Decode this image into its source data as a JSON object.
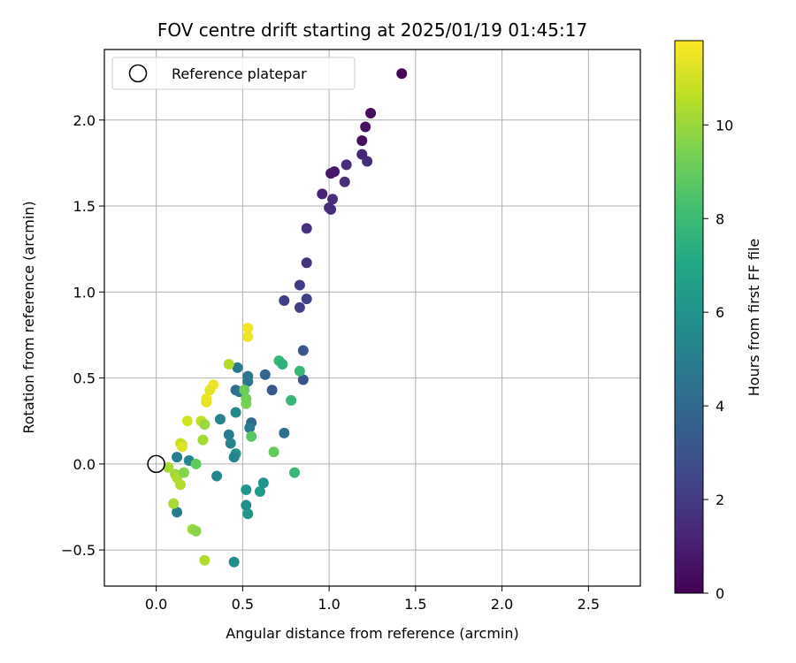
{
  "chart_data": {
    "type": "scatter",
    "title": "FOV centre drift starting at 2025/01/19 01:45:17",
    "xlabel": "Angular distance from reference (arcmin)",
    "ylabel": "Rotation from reference (arcmin)",
    "xlim": [
      -0.3,
      2.8
    ],
    "ylim": [
      -0.71,
      2.41
    ],
    "xticks": [
      0.0,
      0.5,
      1.0,
      1.5,
      2.0,
      2.5
    ],
    "xtick_labels": [
      "0.0",
      "0.5",
      "1.0",
      "1.5",
      "2.0",
      "2.5"
    ],
    "yticks": [
      -0.5,
      0.0,
      0.5,
      1.0,
      1.5,
      2.0
    ],
    "ytick_labels": [
      "−0.5",
      "0.0",
      "0.5",
      "1.0",
      "1.5",
      "2.0"
    ],
    "grid": true,
    "legend": {
      "placement": "top-left",
      "entries": [
        "Reference platepar"
      ]
    },
    "reference_point": {
      "x": 0.0,
      "y": 0.0
    },
    "colorbar": {
      "label": "Hours from first FF file",
      "colormap": "viridis",
      "range": [
        0,
        11.8
      ],
      "ticks": [
        0,
        2,
        4,
        6,
        8,
        10
      ],
      "tick_labels": [
        "0",
        "2",
        "4",
        "6",
        "8",
        "10"
      ]
    },
    "points": [
      {
        "x": 1.42,
        "y": 2.27,
        "h": 0.2
      },
      {
        "x": 1.24,
        "y": 2.04,
        "h": 0.4
      },
      {
        "x": 1.21,
        "y": 1.96,
        "h": 0.6
      },
      {
        "x": 1.19,
        "y": 1.88,
        "h": 0.5
      },
      {
        "x": 1.19,
        "y": 1.8,
        "h": 1.3
      },
      {
        "x": 1.22,
        "y": 1.76,
        "h": 1.5
      },
      {
        "x": 1.1,
        "y": 1.74,
        "h": 1.5
      },
      {
        "x": 1.03,
        "y": 1.7,
        "h": 0.7
      },
      {
        "x": 1.01,
        "y": 1.69,
        "h": 0.8
      },
      {
        "x": 1.09,
        "y": 1.64,
        "h": 1.6
      },
      {
        "x": 0.96,
        "y": 1.57,
        "h": 1.1
      },
      {
        "x": 1.02,
        "y": 1.54,
        "h": 1.6
      },
      {
        "x": 1.0,
        "y": 1.49,
        "h": 1.4
      },
      {
        "x": 1.01,
        "y": 1.48,
        "h": 1.5
      },
      {
        "x": 0.87,
        "y": 1.37,
        "h": 1.6
      },
      {
        "x": 0.87,
        "y": 1.17,
        "h": 1.7
      },
      {
        "x": 0.83,
        "y": 1.04,
        "h": 2.1
      },
      {
        "x": 0.74,
        "y": 0.95,
        "h": 2.2
      },
      {
        "x": 0.87,
        "y": 0.96,
        "h": 2.3
      },
      {
        "x": 0.83,
        "y": 0.91,
        "h": 2.2
      },
      {
        "x": 0.85,
        "y": 0.66,
        "h": 3.2
      },
      {
        "x": 0.85,
        "y": 0.49,
        "h": 3.0
      },
      {
        "x": 0.63,
        "y": 0.52,
        "h": 3.8
      },
      {
        "x": 0.67,
        "y": 0.43,
        "h": 3.2
      },
      {
        "x": 0.74,
        "y": 0.18,
        "h": 4.3
      },
      {
        "x": 0.55,
        "y": 0.24,
        "h": 4.1
      },
      {
        "x": 0.54,
        "y": 0.21,
        "h": 4.8
      },
      {
        "x": 0.53,
        "y": 0.51,
        "h": 4.5
      },
      {
        "x": 0.53,
        "y": 0.48,
        "h": 4.6
      },
      {
        "x": 0.47,
        "y": 0.56,
        "h": 4.8
      },
      {
        "x": 0.46,
        "y": 0.43,
        "h": 4.2
      },
      {
        "x": 0.48,
        "y": 0.42,
        "h": 4.5
      },
      {
        "x": 0.37,
        "y": 0.26,
        "h": 5.3
      },
      {
        "x": 0.46,
        "y": 0.3,
        "h": 5.5
      },
      {
        "x": 0.42,
        "y": 0.17,
        "h": 5.0
      },
      {
        "x": 0.43,
        "y": 0.12,
        "h": 5.3
      },
      {
        "x": 0.46,
        "y": 0.06,
        "h": 6.0
      },
      {
        "x": 0.45,
        "y": 0.04,
        "h": 5.2
      },
      {
        "x": 0.35,
        "y": -0.07,
        "h": 5.4
      },
      {
        "x": 0.12,
        "y": 0.04,
        "h": 5.1
      },
      {
        "x": 0.19,
        "y": 0.02,
        "h": 5.4
      },
      {
        "x": 0.12,
        "y": -0.28,
        "h": 5.0
      },
      {
        "x": 0.52,
        "y": -0.15,
        "h": 6.1
      },
      {
        "x": 0.6,
        "y": -0.16,
        "h": 6.4
      },
      {
        "x": 0.62,
        "y": -0.11,
        "h": 6.0
      },
      {
        "x": 0.52,
        "y": -0.24,
        "h": 5.8
      },
      {
        "x": 0.53,
        "y": -0.29,
        "h": 6.2
      },
      {
        "x": 0.45,
        "y": -0.57,
        "h": 5.7
      },
      {
        "x": 0.71,
        "y": 0.6,
        "h": 7.9
      },
      {
        "x": 0.73,
        "y": 0.58,
        "h": 7.5
      },
      {
        "x": 0.83,
        "y": 0.54,
        "h": 7.8
      },
      {
        "x": 0.78,
        "y": 0.37,
        "h": 7.8
      },
      {
        "x": 0.8,
        "y": -0.05,
        "h": 7.8
      },
      {
        "x": 0.68,
        "y": 0.07,
        "h": 9.0
      },
      {
        "x": 0.55,
        "y": 0.16,
        "h": 8.7
      },
      {
        "x": 0.52,
        "y": 0.35,
        "h": 9.4
      },
      {
        "x": 0.52,
        "y": 0.38,
        "h": 9.3
      },
      {
        "x": 0.51,
        "y": 0.43,
        "h": 9.1
      },
      {
        "x": 0.42,
        "y": 0.58,
        "h": 10.4
      },
      {
        "x": 0.33,
        "y": 0.46,
        "h": 11.5
      },
      {
        "x": 0.31,
        "y": 0.43,
        "h": 11.3
      },
      {
        "x": 0.29,
        "y": 0.38,
        "h": 11.5
      },
      {
        "x": 0.29,
        "y": 0.36,
        "h": 11.4
      },
      {
        "x": 0.53,
        "y": 0.79,
        "h": 11.6
      },
      {
        "x": 0.53,
        "y": 0.74,
        "h": 11.5
      },
      {
        "x": 0.18,
        "y": 0.25,
        "h": 11.0
      },
      {
        "x": 0.26,
        "y": 0.25,
        "h": 10.6
      },
      {
        "x": 0.28,
        "y": 0.23,
        "h": 10.0
      },
      {
        "x": 0.27,
        "y": 0.14,
        "h": 10.2
      },
      {
        "x": 0.14,
        "y": 0.12,
        "h": 10.9
      },
      {
        "x": 0.15,
        "y": 0.11,
        "h": 10.6
      },
      {
        "x": 0.15,
        "y": 0.1,
        "h": 11.2
      },
      {
        "x": 0.23,
        "y": 0.0,
        "h": 8.9
      },
      {
        "x": 0.07,
        "y": -0.02,
        "h": 10.2
      },
      {
        "x": 0.11,
        "y": -0.06,
        "h": 10.0
      },
      {
        "x": 0.12,
        "y": -0.08,
        "h": 10.3
      },
      {
        "x": 0.16,
        "y": -0.05,
        "h": 9.6
      },
      {
        "x": 0.14,
        "y": -0.12,
        "h": 10.4
      },
      {
        "x": 0.1,
        "y": -0.23,
        "h": 10.3
      },
      {
        "x": 0.21,
        "y": -0.38,
        "h": 10.1
      },
      {
        "x": 0.23,
        "y": -0.39,
        "h": 9.7
      },
      {
        "x": 0.28,
        "y": -0.56,
        "h": 10.4
      }
    ]
  }
}
